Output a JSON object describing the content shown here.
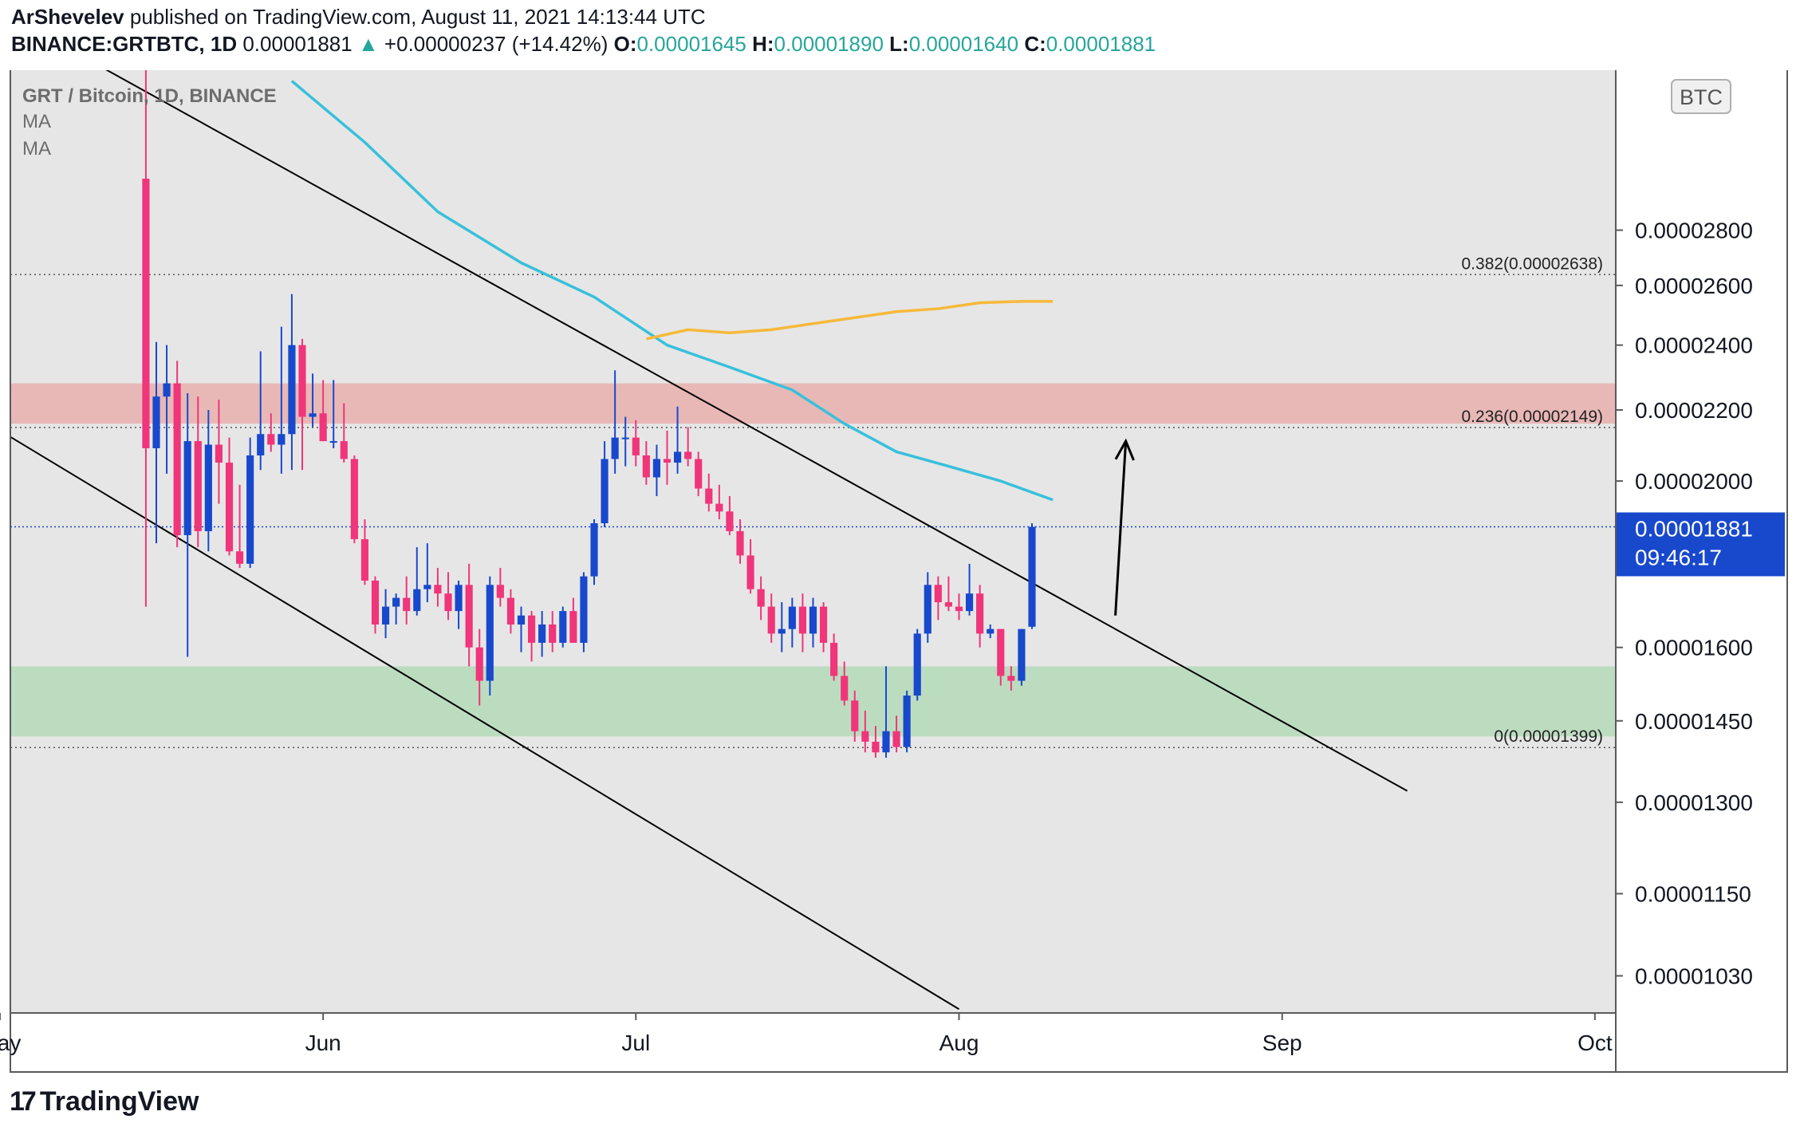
{
  "header": {
    "author": "ArShevelev",
    "published": "published on TradingView.com, August 11, 2021 14:13:44 UTC",
    "symbol": "BINANCE:GRTBTC, 1D",
    "price": "0.00001881",
    "change_arrow": "▲",
    "change": "+0.00000237 (+14.42%)",
    "o_label": "O:",
    "o": "0.00001645",
    "h_label": "H:",
    "h": "0.00001890",
    "l_label": "L:",
    "l": "0.00001640",
    "c_label": "C:",
    "c": "0.00001881"
  },
  "legend": {
    "title": "GRT / Bitcoin, 1D, BINANCE",
    "ma1": "MA",
    "ma2": "MA"
  },
  "currency_badge": "BTC",
  "last_price_label": {
    "price": "0.00001881",
    "countdown": "09:46:17"
  },
  "footer": {
    "logo": "17",
    "brand": "TradingView"
  },
  "colors": {
    "bull": "#1848cc",
    "bear": "#f0357a",
    "ma_fast": "#38c0db",
    "ma_slow": "#f6b93b",
    "resistance_zone": "#e8b8b6",
    "support_zone": "#bcdcc0",
    "pane_bg": "#e6e6e6",
    "price_label_bg": "#1848cc"
  },
  "chart_data": {
    "type": "candlestick",
    "y_scale": "log",
    "ylim": [
      9.8e-06,
      3.47e-05
    ],
    "y_ticks": [
      "0.00001030",
      "0.00001150",
      "0.00001300",
      "0.00001450",
      "0.00001600",
      "0.00002000",
      "0.00002200",
      "0.00002400",
      "0.00002600",
      "0.00002800"
    ],
    "x_ticks": [
      "May",
      "Jun",
      "Jul",
      "Aug",
      "Sep",
      "Oct"
    ],
    "xlim": [
      "2021-05-02",
      "2021-10-03"
    ],
    "fibonacci": [
      {
        "label": "0.382(0.00002638)",
        "value": 2.638e-05
      },
      {
        "label": "0.236(0.00002149)",
        "value": 2.149e-05
      },
      {
        "label": "0(0.00001399)",
        "value": 1.399e-05
      }
    ],
    "resistance_zone": [
      2.16e-05,
      2.28e-05
    ],
    "support_zone": [
      1.42e-05,
      1.56e-05
    ],
    "last_price": 1.881e-05,
    "channel_lines": [
      {
        "from": [
          "2021-05-03",
          3.7e-05
        ],
        "to": [
          "2021-09-13",
          1.32e-05
        ]
      },
      {
        "from": [
          "2021-05-01",
          2.14e-05
        ],
        "to": [
          "2021-08-01",
          9.85e-06
        ]
      }
    ],
    "projection_arrow": {
      "from": [
        "2021-08-16",
        1.67e-05
      ],
      "to": [
        "2021-08-17",
        2.11e-05
      ]
    },
    "series": [
      {
        "name": "MA",
        "type": "line",
        "color": "#38c0db",
        "x": [
          "2021-05-29",
          "2021-06-05",
          "2021-06-12",
          "2021-06-20",
          "2021-06-27",
          "2021-07-04",
          "2021-07-10",
          "2021-07-16",
          "2021-07-21",
          "2021-07-26",
          "2021-07-31",
          "2021-08-05",
          "2021-08-10"
        ],
        "y": [
          3.42e-05,
          3.15e-05,
          2.87e-05,
          2.68e-05,
          2.56e-05,
          2.4e-05,
          2.33e-05,
          2.26e-05,
          2.16e-05,
          2.08e-05,
          2.04e-05,
          2e-05,
          1.95e-05
        ]
      },
      {
        "name": "MA",
        "type": "line",
        "color": "#f6b93b",
        "x": [
          "2021-07-02",
          "2021-07-06",
          "2021-07-10",
          "2021-07-14",
          "2021-07-18",
          "2021-07-22",
          "2021-07-26",
          "2021-07-30",
          "2021-08-03",
          "2021-08-07",
          "2021-08-10"
        ],
        "y": [
          2.42e-05,
          2.45e-05,
          2.44e-05,
          2.45e-05,
          2.47e-05,
          2.49e-05,
          2.51e-05,
          2.52e-05,
          2.54e-05,
          2.545e-05,
          2.545e-05
        ]
      },
      {
        "name": "GRTBTC",
        "type": "candles",
        "columns": [
          "date",
          "open",
          "high",
          "low",
          "close"
        ],
        "data": [
          [
            "2021-05-15",
            3e-05,
            3.47e-05,
            1.69e-05,
            2.09e-05
          ],
          [
            "2021-05-16",
            2.09e-05,
            2.41e-05,
            1.84e-05,
            2.24e-05
          ],
          [
            "2021-05-17",
            2.24e-05,
            2.4e-05,
            2.02e-05,
            2.28e-05
          ],
          [
            "2021-05-18",
            2.28e-05,
            2.35e-05,
            1.83e-05,
            1.86e-05
          ],
          [
            "2021-05-19",
            1.86e-05,
            2.25e-05,
            1.58e-05,
            2.11e-05
          ],
          [
            "2021-05-20",
            2.11e-05,
            2.24e-05,
            1.83e-05,
            1.87e-05
          ],
          [
            "2021-05-21",
            1.87e-05,
            2.2e-05,
            1.82e-05,
            2.1e-05
          ],
          [
            "2021-05-22",
            2.1e-05,
            2.23e-05,
            1.94e-05,
            2.05e-05
          ],
          [
            "2021-05-23",
            2.05e-05,
            2.12e-05,
            1.81e-05,
            1.82e-05
          ],
          [
            "2021-05-24",
            1.82e-05,
            1.99e-05,
            1.78e-05,
            1.79e-05
          ],
          [
            "2021-05-25",
            1.79e-05,
            2.12e-05,
            1.78e-05,
            2.07e-05
          ],
          [
            "2021-05-26",
            2.07e-05,
            2.38e-05,
            2.03e-05,
            2.13e-05
          ],
          [
            "2021-05-27",
            2.13e-05,
            2.19e-05,
            2.08e-05,
            2.1e-05
          ],
          [
            "2021-05-28",
            2.1e-05,
            2.46e-05,
            2.02e-05,
            2.13e-05
          ],
          [
            "2021-05-29",
            2.13e-05,
            2.57e-05,
            2.03e-05,
            2.4e-05
          ],
          [
            "2021-05-30",
            2.4e-05,
            2.42e-05,
            2.03e-05,
            2.18e-05
          ],
          [
            "2021-05-31",
            2.18e-05,
            2.31e-05,
            2.15e-05,
            2.19e-05
          ],
          [
            "2021-06-01",
            2.19e-05,
            2.29e-05,
            2.11e-05,
            2.11e-05
          ],
          [
            "2021-06-02",
            2.11e-05,
            2.29e-05,
            2.09e-05,
            2.11e-05
          ],
          [
            "2021-06-03",
            2.11e-05,
            2.22e-05,
            2.05e-05,
            2.06e-05
          ],
          [
            "2021-06-04",
            2.06e-05,
            2.07e-05,
            1.84e-05,
            1.85e-05
          ],
          [
            "2021-06-05",
            1.85e-05,
            1.9e-05,
            1.74e-05,
            1.75e-05
          ],
          [
            "2021-06-06",
            1.75e-05,
            1.76e-05,
            1.63e-05,
            1.65e-05
          ],
          [
            "2021-06-07",
            1.65e-05,
            1.73e-05,
            1.62e-05,
            1.69e-05
          ],
          [
            "2021-06-08",
            1.69e-05,
            1.72e-05,
            1.65e-05,
            1.71e-05
          ],
          [
            "2021-06-09",
            1.71e-05,
            1.76e-05,
            1.65e-05,
            1.68e-05
          ],
          [
            "2021-06-10",
            1.68e-05,
            1.83e-05,
            1.67e-05,
            1.73e-05
          ],
          [
            "2021-06-11",
            1.73e-05,
            1.84e-05,
            1.7e-05,
            1.74e-05
          ],
          [
            "2021-06-12",
            1.74e-05,
            1.78e-05,
            1.69e-05,
            1.72e-05
          ],
          [
            "2021-06-13",
            1.72e-05,
            1.77e-05,
            1.66e-05,
            1.68e-05
          ],
          [
            "2021-06-14",
            1.68e-05,
            1.75e-05,
            1.64e-05,
            1.74e-05
          ],
          [
            "2021-06-15",
            1.74e-05,
            1.79e-05,
            1.56e-05,
            1.6e-05
          ],
          [
            "2021-06-16",
            1.6e-05,
            1.64e-05,
            1.48e-05,
            1.53e-05
          ],
          [
            "2021-06-17",
            1.53e-05,
            1.76e-05,
            1.5e-05,
            1.74e-05
          ],
          [
            "2021-06-18",
            1.74e-05,
            1.78e-05,
            1.69e-05,
            1.71e-05
          ],
          [
            "2021-06-19",
            1.71e-05,
            1.73e-05,
            1.63e-05,
            1.65e-05
          ],
          [
            "2021-06-20",
            1.65e-05,
            1.69e-05,
            1.59e-05,
            1.67e-05
          ],
          [
            "2021-06-21",
            1.67e-05,
            1.68e-05,
            1.57e-05,
            1.61e-05
          ],
          [
            "2021-06-22",
            1.61e-05,
            1.68e-05,
            1.58e-05,
            1.65e-05
          ],
          [
            "2021-06-23",
            1.65e-05,
            1.68e-05,
            1.59e-05,
            1.61e-05
          ],
          [
            "2021-06-24",
            1.61e-05,
            1.69e-05,
            1.6e-05,
            1.68e-05
          ],
          [
            "2021-06-25",
            1.68e-05,
            1.71e-05,
            1.61e-05,
            1.61e-05
          ],
          [
            "2021-06-26",
            1.61e-05,
            1.77e-05,
            1.59e-05,
            1.76e-05
          ],
          [
            "2021-06-27",
            1.76e-05,
            1.9e-05,
            1.74e-05,
            1.89e-05
          ],
          [
            "2021-06-28",
            1.89e-05,
            2.11e-05,
            1.88e-05,
            2.06e-05
          ],
          [
            "2021-06-29",
            2.06e-05,
            2.32e-05,
            2.02e-05,
            2.12e-05
          ],
          [
            "2021-06-30",
            2.12e-05,
            2.18e-05,
            2.04e-05,
            2.12e-05
          ],
          [
            "2021-07-01",
            2.12e-05,
            2.17e-05,
            2.04e-05,
            2.07e-05
          ],
          [
            "2021-07-02",
            2.07e-05,
            2.11e-05,
            1.99e-05,
            2.01e-05
          ],
          [
            "2021-07-03",
            2.01e-05,
            2.1e-05,
            1.96e-05,
            2.06e-05
          ],
          [
            "2021-07-04",
            2.06e-05,
            2.14e-05,
            1.99e-05,
            2.05e-05
          ],
          [
            "2021-07-05",
            2.05e-05,
            2.21e-05,
            2.02e-05,
            2.08e-05
          ],
          [
            "2021-07-06",
            2.08e-05,
            2.15e-05,
            2.04e-05,
            2.06e-05
          ],
          [
            "2021-07-07",
            2.06e-05,
            2.08e-05,
            1.96e-05,
            1.98e-05
          ],
          [
            "2021-07-08",
            1.98e-05,
            2.02e-05,
            1.92e-05,
            1.94e-05
          ],
          [
            "2021-07-09",
            1.94e-05,
            1.99e-05,
            1.9e-05,
            1.92e-05
          ],
          [
            "2021-07-10",
            1.92e-05,
            1.96e-05,
            1.86e-05,
            1.87e-05
          ],
          [
            "2021-07-11",
            1.87e-05,
            1.9e-05,
            1.79e-05,
            1.81e-05
          ],
          [
            "2021-07-12",
            1.81e-05,
            1.85e-05,
            1.72e-05,
            1.73e-05
          ],
          [
            "2021-07-13",
            1.73e-05,
            1.76e-05,
            1.66e-05,
            1.69e-05
          ],
          [
            "2021-07-14",
            1.69e-05,
            1.72e-05,
            1.61e-05,
            1.63e-05
          ],
          [
            "2021-07-15",
            1.63e-05,
            1.7e-05,
            1.59e-05,
            1.64e-05
          ],
          [
            "2021-07-16",
            1.64e-05,
            1.71e-05,
            1.6e-05,
            1.69e-05
          ],
          [
            "2021-07-17",
            1.69e-05,
            1.72e-05,
            1.59e-05,
            1.63e-05
          ],
          [
            "2021-07-18",
            1.63e-05,
            1.71e-05,
            1.6e-05,
            1.69e-05
          ],
          [
            "2021-07-19",
            1.69e-05,
            1.7e-05,
            1.59e-05,
            1.61e-05
          ],
          [
            "2021-07-20",
            1.61e-05,
            1.63e-05,
            1.53e-05,
            1.54e-05
          ],
          [
            "2021-07-21",
            1.54e-05,
            1.57e-05,
            1.48e-05,
            1.49e-05
          ],
          [
            "2021-07-22",
            1.49e-05,
            1.51e-05,
            1.41e-05,
            1.43e-05
          ],
          [
            "2021-07-23",
            1.43e-05,
            1.47e-05,
            1.39e-05,
            1.41e-05
          ],
          [
            "2021-07-24",
            1.41e-05,
            1.44e-05,
            1.38e-05,
            1.39e-05
          ],
          [
            "2021-07-25",
            1.39e-05,
            1.56e-05,
            1.38e-05,
            1.43e-05
          ],
          [
            "2021-07-26",
            1.43e-05,
            1.46e-05,
            1.39e-05,
            1.4e-05
          ],
          [
            "2021-07-27",
            1.4e-05,
            1.51e-05,
            1.39e-05,
            1.5e-05
          ],
          [
            "2021-07-28",
            1.5e-05,
            1.64e-05,
            1.49e-05,
            1.63e-05
          ],
          [
            "2021-07-29",
            1.63e-05,
            1.77e-05,
            1.61e-05,
            1.74e-05
          ],
          [
            "2021-07-30",
            1.74e-05,
            1.76e-05,
            1.66e-05,
            1.7e-05
          ],
          [
            "2021-07-31",
            1.7e-05,
            1.76e-05,
            1.68e-05,
            1.69e-05
          ],
          [
            "2021-08-01",
            1.69e-05,
            1.72e-05,
            1.66e-05,
            1.68e-05
          ],
          [
            "2021-08-02",
            1.68e-05,
            1.79e-05,
            1.67e-05,
            1.72e-05
          ],
          [
            "2021-08-03",
            1.72e-05,
            1.74e-05,
            1.6e-05,
            1.63e-05
          ],
          [
            "2021-08-04",
            1.63e-05,
            1.65e-05,
            1.62e-05,
            1.64e-05
          ],
          [
            "2021-08-05",
            1.64e-05,
            1.64e-05,
            1.52e-05,
            1.54e-05
          ],
          [
            "2021-08-06",
            1.54e-05,
            1.56e-05,
            1.51e-05,
            1.53e-05
          ],
          [
            "2021-08-07",
            1.53e-05,
            1.64e-05,
            1.52e-05,
            1.64e-05
          ],
          [
            "2021-08-08",
            1.645e-05,
            1.89e-05,
            1.64e-05,
            1.881e-05
          ]
        ]
      }
    ]
  }
}
